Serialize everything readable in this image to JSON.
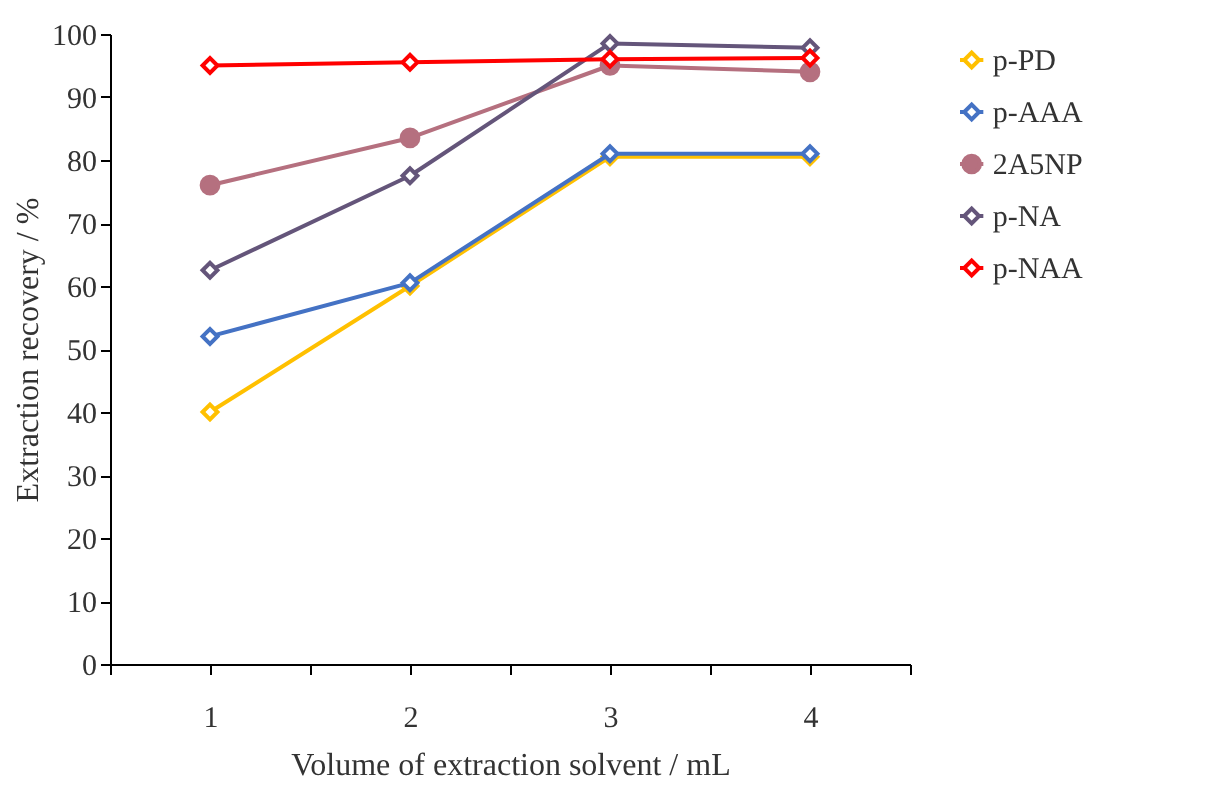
{
  "chart_data": {
    "type": "line",
    "xlabel": "Volume of extraction solvent / mL",
    "ylabel": "Extraction recovery / %",
    "x": [
      1,
      2,
      3,
      4
    ],
    "xlim": [
      0.5,
      4.5
    ],
    "xticks": [
      {
        "value": 0.5,
        "label": null
      },
      1,
      {
        "value": 1.5,
        "label": null
      },
      2,
      {
        "value": 2.5,
        "label": null
      },
      3,
      {
        "value": 3.5,
        "label": null
      },
      4,
      {
        "value": 4.5,
        "label": null
      }
    ],
    "ylim": [
      0,
      100
    ],
    "yticks": [
      0,
      10,
      20,
      30,
      40,
      50,
      60,
      70,
      80,
      90,
      100
    ],
    "grid": false,
    "legend": "right",
    "line_style": "solid",
    "series": [
      {
        "name": "p-PD",
        "color": "#ffc000",
        "marker": "diamond",
        "values": [
          40,
          60,
          80.5,
          80.5
        ]
      },
      {
        "name": "p-AAA",
        "color": "#4472c4",
        "marker": "diamond",
        "values": [
          52,
          60.5,
          81,
          81
        ]
      },
      {
        "name": "2A5NP",
        "color": "#b5707f",
        "marker": "circle",
        "values": [
          76,
          83.5,
          95,
          94
        ]
      },
      {
        "name": "p-NA",
        "color": "#64557a",
        "marker": "diamond",
        "values": [
          62.5,
          77.5,
          98.5,
          97.8
        ]
      },
      {
        "name": "p-NAA",
        "color": "#ff0000",
        "marker": "diamond",
        "values": [
          95,
          95.5,
          96,
          96.2
        ]
      }
    ]
  }
}
